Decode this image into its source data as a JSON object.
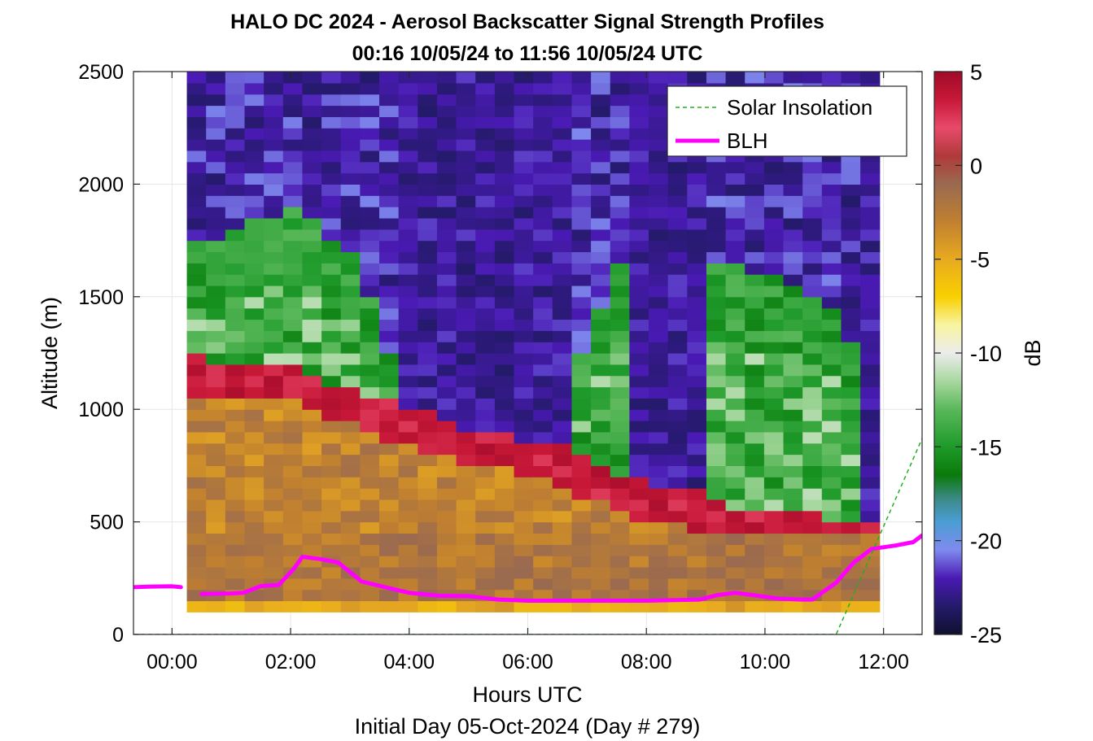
{
  "chart_data": {
    "type": "heatmap",
    "title_lines": [
      "HALO DC 2024 - Aerosol Backscatter Signal Strength Profiles",
      "00:16 10/05/24 to 11:56 10/05/24  UTC"
    ],
    "xlabel": "Hours UTC",
    "ylabel": "Altitude (m)",
    "subtitle": "Initial Day 05-Oct-2024 (Day # 279)",
    "x_range_hours": [
      -0.65,
      12.65
    ],
    "ylim": [
      0,
      2500
    ],
    "x_ticks": [
      {
        "hour": 0,
        "label": "00:00"
      },
      {
        "hour": 2,
        "label": "02:00"
      },
      {
        "hour": 4,
        "label": "04:00"
      },
      {
        "hour": 6,
        "label": "06:00"
      },
      {
        "hour": 8,
        "label": "08:00"
      },
      {
        "hour": 10,
        "label": "10:00"
      },
      {
        "hour": 12,
        "label": "12:00"
      }
    ],
    "y_ticks": [
      {
        "value": 0,
        "label": "0"
      },
      {
        "value": 500,
        "label": "500"
      },
      {
        "value": 1000,
        "label": "1000"
      },
      {
        "value": 1500,
        "label": "1500"
      },
      {
        "value": 2000,
        "label": "2000"
      },
      {
        "value": 2500,
        "label": "2500"
      }
    ],
    "grid": true,
    "legend_position": "top-right",
    "colorbar": {
      "label": "dB",
      "range": [
        -25,
        5
      ],
      "ticks": [
        {
          "value": 5,
          "label": "5"
        },
        {
          "value": 0,
          "label": "0"
        },
        {
          "value": -5,
          "label": "-5"
        },
        {
          "value": -10,
          "label": "-10"
        },
        {
          "value": -15,
          "label": "-15"
        },
        {
          "value": -20,
          "label": "-20"
        },
        {
          "value": -25,
          "label": "-25"
        }
      ],
      "stops": [
        {
          "value": -25,
          "color": "#101030"
        },
        {
          "value": -23.5,
          "color": "#241a6a"
        },
        {
          "value": -22,
          "color": "#4a1ab4"
        },
        {
          "value": -20.5,
          "color": "#7f8aee"
        },
        {
          "value": -19,
          "color": "#4a9ed4"
        },
        {
          "value": -17.8,
          "color": "#3d8a8a"
        },
        {
          "value": -16.5,
          "color": "#0a7a0a"
        },
        {
          "value": -15,
          "color": "#1e9a2a"
        },
        {
          "value": -13,
          "color": "#5ab85a"
        },
        {
          "value": -11.5,
          "color": "#a8d8a0"
        },
        {
          "value": -10,
          "color": "#ececec"
        },
        {
          "value": -8.5,
          "color": "#f8f4a0"
        },
        {
          "value": -7,
          "color": "#f8d000"
        },
        {
          "value": -5,
          "color": "#e8aa20"
        },
        {
          "value": -3,
          "color": "#c08030"
        },
        {
          "value": -1,
          "color": "#9a6a50"
        },
        {
          "value": 0.5,
          "color": "#b03a3a"
        },
        {
          "value": 2,
          "color": "#e84a6a"
        },
        {
          "value": 3.5,
          "color": "#c81838"
        },
        {
          "value": 5,
          "color": "#a00a28"
        }
      ]
    },
    "heatmap": {
      "time_start_hour": 0.25,
      "time_end_hour": 11.933,
      "altitude_top_m": 2500,
      "altitude_bottom_m": 100,
      "columns": 36,
      "levels": 48,
      "value_unit": "dB",
      "value_range": [
        -25,
        5
      ]
    },
    "series": [
      {
        "name": "BLH",
        "color": "#ff00ff",
        "segments": [
          [
            [
              -0.65,
              210
            ],
            [
              -0.4,
              212
            ],
            [
              0,
              214
            ],
            [
              0.15,
              210
            ]
          ],
          [
            [
              0.5,
              180
            ],
            [
              1.0,
              182
            ],
            [
              1.2,
              185
            ],
            [
              1.5,
              215
            ],
            [
              1.8,
              220
            ],
            [
              2.05,
              290
            ],
            [
              2.2,
              345
            ],
            [
              2.5,
              335
            ],
            [
              2.8,
              320
            ],
            [
              3.2,
              235
            ],
            [
              3.6,
              210
            ],
            [
              4.0,
              185
            ],
            [
              4.5,
              172
            ],
            [
              5.0,
              170
            ],
            [
              5.5,
              155
            ],
            [
              6.0,
              150
            ],
            [
              7.0,
              150
            ],
            [
              8.0,
              150
            ],
            [
              8.9,
              155
            ],
            [
              9.2,
              175
            ],
            [
              9.5,
              185
            ],
            [
              9.8,
              175
            ],
            [
              10.2,
              160
            ],
            [
              10.6,
              155
            ],
            [
              10.8,
              155
            ],
            [
              11.2,
              230
            ],
            [
              11.5,
              320
            ],
            [
              11.8,
              380
            ],
            [
              12.2,
              395
            ],
            [
              12.5,
              410
            ],
            [
              12.65,
              440
            ]
          ]
        ]
      },
      {
        "name": "Solar Insolation",
        "color": "#20b020",
        "style": "dashed",
        "points": [
          [
            -0.65,
            0
          ],
          [
            11.2,
            0
          ],
          [
            12.65,
            870
          ]
        ]
      }
    ]
  }
}
